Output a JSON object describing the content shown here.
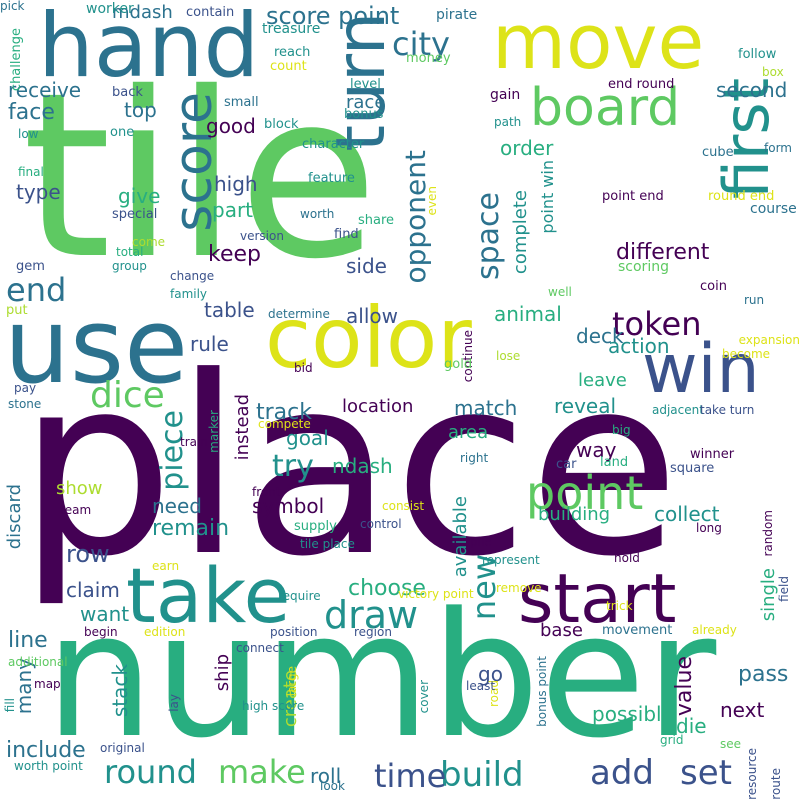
{
  "colors": {
    "dark_purple": "#440154",
    "indigo": "#3b528b",
    "teal_blue": "#2c728e",
    "teal": "#21918c",
    "green_teal": "#28ae80",
    "green": "#5ec962",
    "yellow_green": "#addc30",
    "yellow": "#dde318",
    "background": "#ffffff"
  },
  "words": [
    {
      "text": "tile",
      "color": "green"
    },
    {
      "text": "place",
      "color": "dark_purple"
    },
    {
      "text": "number",
      "color": "green_teal"
    },
    {
      "text": "use",
      "color": "teal_blue"
    },
    {
      "text": "hand",
      "color": "teal_blue"
    },
    {
      "text": "move",
      "color": "yellow"
    },
    {
      "text": "color",
      "color": "yellow"
    },
    {
      "text": "take",
      "color": "teal"
    },
    {
      "text": "start",
      "color": "dark_purple"
    },
    {
      "text": "turn",
      "color": "teal_blue"
    },
    {
      "text": "first",
      "color": "teal"
    },
    {
      "text": "win",
      "color": "indigo"
    },
    {
      "text": "board",
      "color": "green"
    },
    {
      "text": "score",
      "color": "teal_blue"
    },
    {
      "text": "point",
      "color": "green"
    },
    {
      "text": "build",
      "color": "teal"
    },
    {
      "text": "time",
      "color": "indigo"
    },
    {
      "text": "set",
      "color": "indigo"
    },
    {
      "text": "add",
      "color": "indigo"
    },
    {
      "text": "round",
      "color": "teal"
    },
    {
      "text": "make",
      "color": "green"
    },
    {
      "text": "draw",
      "color": "teal"
    },
    {
      "text": "dice",
      "color": "green"
    },
    {
      "text": "end",
      "color": "teal_blue"
    },
    {
      "text": "city",
      "color": "teal_blue"
    },
    {
      "text": "score point",
      "color": "teal_blue"
    },
    {
      "text": "space",
      "color": "teal_blue"
    },
    {
      "text": "opponent",
      "color": "teal_blue"
    },
    {
      "text": "token",
      "color": "dark_purple"
    },
    {
      "text": "piece",
      "color": "teal"
    },
    {
      "text": "try",
      "color": "teal"
    },
    {
      "text": "new",
      "color": "teal"
    },
    {
      "text": "different",
      "color": "dark_purple"
    },
    {
      "text": "receive",
      "color": "teal_blue"
    },
    {
      "text": "face",
      "color": "teal_blue"
    },
    {
      "text": "mdash",
      "color": "teal_blue"
    },
    {
      "text": "top",
      "color": "teal_blue"
    },
    {
      "text": "race",
      "color": "teal_blue"
    },
    {
      "text": "second",
      "color": "teal_blue"
    },
    {
      "text": "good",
      "color": "dark_purple"
    },
    {
      "text": "order",
      "color": "green_teal"
    },
    {
      "text": "complete",
      "color": "teal"
    },
    {
      "text": "point win",
      "color": "teal"
    },
    {
      "text": "type",
      "color": "indigo"
    },
    {
      "text": "give",
      "color": "green_teal"
    },
    {
      "text": "high",
      "color": "indigo"
    },
    {
      "text": "part",
      "color": "green_teal"
    },
    {
      "text": "keep",
      "color": "dark_purple"
    },
    {
      "text": "side",
      "color": "indigo"
    },
    {
      "text": "allow",
      "color": "indigo"
    },
    {
      "text": "animal",
      "color": "green_teal"
    },
    {
      "text": "table",
      "color": "indigo"
    },
    {
      "text": "rule",
      "color": "indigo"
    },
    {
      "text": "deck",
      "color": "teal_blue"
    },
    {
      "text": "action",
      "color": "teal"
    },
    {
      "text": "leave",
      "color": "green_teal"
    },
    {
      "text": "track",
      "color": "teal_blue"
    },
    {
      "text": "location",
      "color": "dark_purple"
    },
    {
      "text": "match",
      "color": "teal_blue"
    },
    {
      "text": "reveal",
      "color": "teal"
    },
    {
      "text": "instead",
      "color": "dark_purple"
    },
    {
      "text": "goal",
      "color": "teal"
    },
    {
      "text": "area",
      "color": "green_teal"
    },
    {
      "text": "way",
      "color": "dark_purple"
    },
    {
      "text": "ndash",
      "color": "green_teal"
    },
    {
      "text": "show",
      "color": "yellow_green"
    },
    {
      "text": "discard",
      "color": "teal_blue"
    },
    {
      "text": "symbol",
      "color": "dark_purple"
    },
    {
      "text": "need",
      "color": "teal_blue"
    },
    {
      "text": "remain",
      "color": "teal"
    },
    {
      "text": "building",
      "color": "green_teal"
    },
    {
      "text": "collect",
      "color": "teal"
    },
    {
      "text": "available",
      "color": "teal"
    },
    {
      "text": "row",
      "color": "indigo"
    },
    {
      "text": "claim",
      "color": "indigo"
    },
    {
      "text": "want",
      "color": "teal"
    },
    {
      "text": "choose",
      "color": "green_teal"
    },
    {
      "text": "base",
      "color": "dark_purple"
    },
    {
      "text": "single",
      "color": "green_teal"
    },
    {
      "text": "line",
      "color": "teal_blue"
    },
    {
      "text": "many",
      "color": "teal_blue"
    },
    {
      "text": "include",
      "color": "teal_blue"
    },
    {
      "text": "ship",
      "color": "dark_purple"
    },
    {
      "text": "stack",
      "color": "teal"
    },
    {
      "text": "create",
      "color": "yellow_green"
    },
    {
      "text": "roll",
      "color": "teal_blue"
    },
    {
      "text": "go",
      "color": "indigo"
    },
    {
      "text": "value",
      "color": "dark_purple"
    },
    {
      "text": "possible",
      "color": "green_teal"
    },
    {
      "text": "pass",
      "color": "teal_blue"
    },
    {
      "text": "next",
      "color": "dark_purple"
    },
    {
      "text": "die",
      "color": "green_teal"
    },
    {
      "text": "worker",
      "color": "teal"
    },
    {
      "text": "contain",
      "color": "indigo"
    },
    {
      "text": "treasure",
      "color": "teal"
    },
    {
      "text": "pirate",
      "color": "teal_blue"
    },
    {
      "text": "challenge",
      "color": "green_teal"
    },
    {
      "text": "reach",
      "color": "teal"
    },
    {
      "text": "money",
      "color": "green"
    },
    {
      "text": "count",
      "color": "yellow"
    },
    {
      "text": "follow",
      "color": "teal"
    },
    {
      "text": "box",
      "color": "yellow_green"
    },
    {
      "text": "level",
      "color": "teal"
    },
    {
      "text": "end round",
      "color": "dark_purple"
    },
    {
      "text": "back",
      "color": "indigo"
    },
    {
      "text": "gain",
      "color": "dark_purple"
    },
    {
      "text": "small",
      "color": "teal_blue"
    },
    {
      "text": "bonus",
      "color": "teal"
    },
    {
      "text": "block",
      "color": "teal"
    },
    {
      "text": "low",
      "color": "teal"
    },
    {
      "text": "one",
      "color": "teal"
    },
    {
      "text": "path",
      "color": "teal"
    },
    {
      "text": "character",
      "color": "teal"
    },
    {
      "text": "cube",
      "color": "teal_blue"
    },
    {
      "text": "form",
      "color": "teal_blue"
    },
    {
      "text": "final",
      "color": "green_teal"
    },
    {
      "text": "feature",
      "color": "teal"
    },
    {
      "text": "point end",
      "color": "dark_purple"
    },
    {
      "text": "round end",
      "color": "yellow"
    },
    {
      "text": "even",
      "color": "yellow"
    },
    {
      "text": "special",
      "color": "indigo"
    },
    {
      "text": "worth",
      "color": "teal_blue"
    },
    {
      "text": "share",
      "color": "green_teal"
    },
    {
      "text": "course",
      "color": "teal_blue"
    },
    {
      "text": "find",
      "color": "indigo"
    },
    {
      "text": "version",
      "color": "indigo"
    },
    {
      "text": "come",
      "color": "yellow_green"
    },
    {
      "text": "gem",
      "color": "indigo"
    },
    {
      "text": "total",
      "color": "green_teal"
    },
    {
      "text": "group",
      "color": "teal"
    },
    {
      "text": "change",
      "color": "indigo"
    },
    {
      "text": "scoring",
      "color": "green"
    },
    {
      "text": "family",
      "color": "teal"
    },
    {
      "text": "well",
      "color": "green"
    },
    {
      "text": "coin",
      "color": "dark_purple"
    },
    {
      "text": "run",
      "color": "teal_blue"
    },
    {
      "text": "put",
      "color": "yellow_green"
    },
    {
      "text": "determine",
      "color": "teal_blue"
    },
    {
      "text": "expansion",
      "color": "yellow"
    },
    {
      "text": "become",
      "color": "yellow"
    },
    {
      "text": "continue",
      "color": "dark_purple"
    },
    {
      "text": "lose",
      "color": "yellow_green"
    },
    {
      "text": "bid",
      "color": "dark_purple"
    },
    {
      "text": "gold",
      "color": "green"
    },
    {
      "text": "pay",
      "color": "indigo"
    },
    {
      "text": "stone",
      "color": "teal_blue"
    },
    {
      "text": "marker",
      "color": "green_teal"
    },
    {
      "text": "adjacent",
      "color": "teal"
    },
    {
      "text": "take turn",
      "color": "indigo"
    },
    {
      "text": "compete",
      "color": "yellow"
    },
    {
      "text": "train",
      "color": "dark_purple"
    },
    {
      "text": "big",
      "color": "green_teal"
    },
    {
      "text": "winner",
      "color": "dark_purple"
    },
    {
      "text": "right",
      "color": "teal_blue"
    },
    {
      "text": "land",
      "color": "green_teal"
    },
    {
      "text": "car",
      "color": "indigo"
    },
    {
      "text": "square",
      "color": "indigo"
    },
    {
      "text": "front",
      "color": "dark_purple"
    },
    {
      "text": "consist",
      "color": "yellow"
    },
    {
      "text": "team",
      "color": "dark_purple"
    },
    {
      "text": "control",
      "color": "indigo"
    },
    {
      "text": "supply",
      "color": "green_teal"
    },
    {
      "text": "long",
      "color": "dark_purple"
    },
    {
      "text": "random",
      "color": "dark_purple"
    },
    {
      "text": "tile place",
      "color": "teal"
    },
    {
      "text": "pile",
      "color": "dark_purple"
    },
    {
      "text": "earn",
      "color": "yellow"
    },
    {
      "text": "require",
      "color": "teal"
    },
    {
      "text": "victory point",
      "color": "yellow"
    },
    {
      "text": "represent",
      "color": "teal"
    },
    {
      "text": "hold",
      "color": "dark_purple"
    },
    {
      "text": "remove",
      "color": "yellow"
    },
    {
      "text": "field",
      "color": "indigo"
    },
    {
      "text": "trick",
      "color": "yellow"
    },
    {
      "text": "begin",
      "color": "dark_purple"
    },
    {
      "text": "edition",
      "color": "yellow"
    },
    {
      "text": "position",
      "color": "indigo"
    },
    {
      "text": "region",
      "color": "indigo"
    },
    {
      "text": "movement",
      "color": "teal_blue"
    },
    {
      "text": "already",
      "color": "yellow"
    },
    {
      "text": "additional",
      "color": "green"
    },
    {
      "text": "connect",
      "color": "indigo"
    },
    {
      "text": "map",
      "color": "dark_purple"
    },
    {
      "text": "large",
      "color": "yellow"
    },
    {
      "text": "cover",
      "color": "teal"
    },
    {
      "text": "bonus point",
      "color": "teal_blue"
    },
    {
      "text": "road",
      "color": "yellow"
    },
    {
      "text": "fill",
      "color": "teal"
    },
    {
      "text": "high score",
      "color": "teal"
    },
    {
      "text": "least",
      "color": "indigo"
    },
    {
      "text": "lay",
      "color": "indigo"
    },
    {
      "text": "worth point",
      "color": "teal"
    },
    {
      "text": "original",
      "color": "indigo"
    },
    {
      "text": "grid",
      "color": "green_teal"
    },
    {
      "text": "see",
      "color": "green"
    },
    {
      "text": "resource",
      "color": "indigo"
    },
    {
      "text": "look",
      "color": "teal_blue"
    },
    {
      "text": "route",
      "color": "indigo"
    },
    {
      "text": "pick",
      "color": "teal_blue"
    }
  ]
}
